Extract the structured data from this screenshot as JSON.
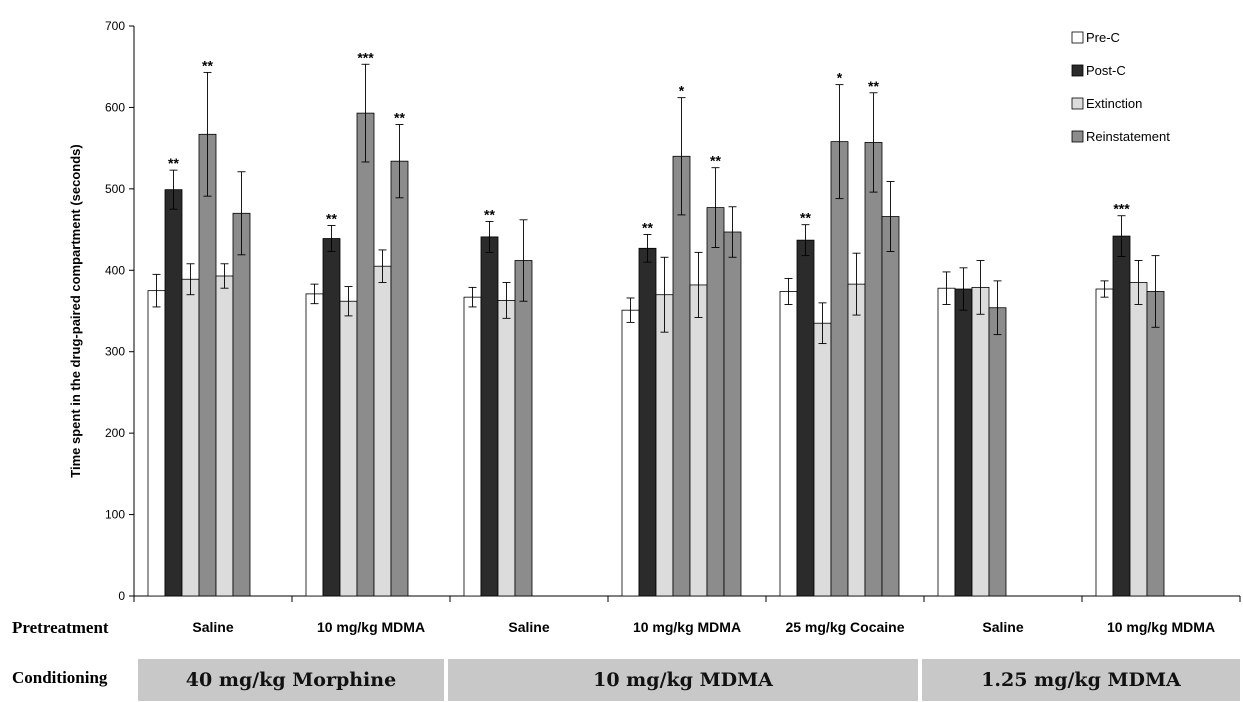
{
  "labels": {
    "pretreatment": "Pretreatment",
    "conditioning": "Conditioning"
  },
  "conditioning_groups": [
    {
      "label": "40 mg/kg Morphine"
    },
    {
      "label": "10 mg/kg MDMA"
    },
    {
      "label": "1.25 mg/kg MDMA"
    }
  ],
  "colors": {
    "Pre-C": "#ffffff",
    "Post-C": "#2b2b2b",
    "Extinction": "#dcdcdc",
    "Reinstatement": "#8c8c8c",
    "conditioning_bar": "#c8c8c8"
  },
  "chart_data": {
    "type": "bar",
    "ylabel": "Time spent in the drug-paired compartment (seconds)",
    "xlabel": "",
    "ylim": [
      0,
      700
    ],
    "yticks": [
      0,
      100,
      200,
      300,
      400,
      500,
      600,
      700
    ],
    "legend_position": "top-right",
    "categories": [
      "Saline",
      "10 mg/kg MDMA",
      "Saline",
      "10 mg/kg MDMA",
      "25 mg/kg Cocaine",
      "Saline",
      "10 mg/kg MDMA"
    ],
    "series": [
      {
        "name": "Pre-C",
        "values": [
          375,
          371,
          367,
          351,
          374,
          378,
          377
        ],
        "errors": [
          20,
          12,
          12,
          15,
          16,
          20,
          10
        ],
        "sig": [
          "",
          "",
          "",
          "",
          "",
          "",
          ""
        ]
      },
      {
        "name": "Post-C",
        "values": [
          499,
          439,
          441,
          427,
          437,
          377,
          442
        ],
        "errors": [
          24,
          16,
          19,
          17,
          19,
          26,
          25
        ],
        "sig": [
          "**",
          "**",
          "**",
          "**",
          "**",
          "",
          "***"
        ]
      },
      {
        "name": "Extinction",
        "values": [
          389,
          362,
          363,
          370,
          335,
          379,
          385
        ],
        "errors": [
          19,
          18,
          22,
          46,
          25,
          33,
          27
        ],
        "sig": [
          "",
          "",
          "",
          "",
          "",
          "",
          ""
        ]
      },
      {
        "name": "Reinstatement",
        "values": [
          567,
          593,
          412,
          540,
          558,
          354,
          374
        ],
        "errors": [
          76,
          60,
          50,
          72,
          70,
          33,
          44
        ],
        "sig": [
          "**",
          "***",
          "",
          "*",
          "*",
          "",
          ""
        ]
      },
      {
        "name": "Extinction",
        "values": [
          393,
          405,
          null,
          382,
          383,
          null,
          null
        ],
        "errors": [
          15,
          20,
          null,
          40,
          38,
          null,
          null
        ],
        "sig": [
          "",
          "",
          "",
          "",
          "",
          "",
          ""
        ]
      },
      {
        "name": "Reinstatement",
        "values": [
          470,
          534,
          null,
          477,
          557,
          null,
          null
        ],
        "errors": [
          51,
          45,
          null,
          49,
          61,
          null,
          null
        ],
        "sig": [
          "",
          "**",
          "",
          "**",
          "**",
          "",
          ""
        ]
      },
      {
        "name": "Reinstatement",
        "values": [
          null,
          null,
          null,
          447,
          466,
          null,
          null
        ],
        "errors": [
          null,
          null,
          null,
          31,
          43,
          null,
          null
        ],
        "sig": [
          "",
          "",
          "",
          "",
          "",
          "",
          ""
        ]
      }
    ],
    "legend": [
      "Pre-C",
      "Post-C",
      "Extinction",
      "Reinstatement"
    ]
  }
}
